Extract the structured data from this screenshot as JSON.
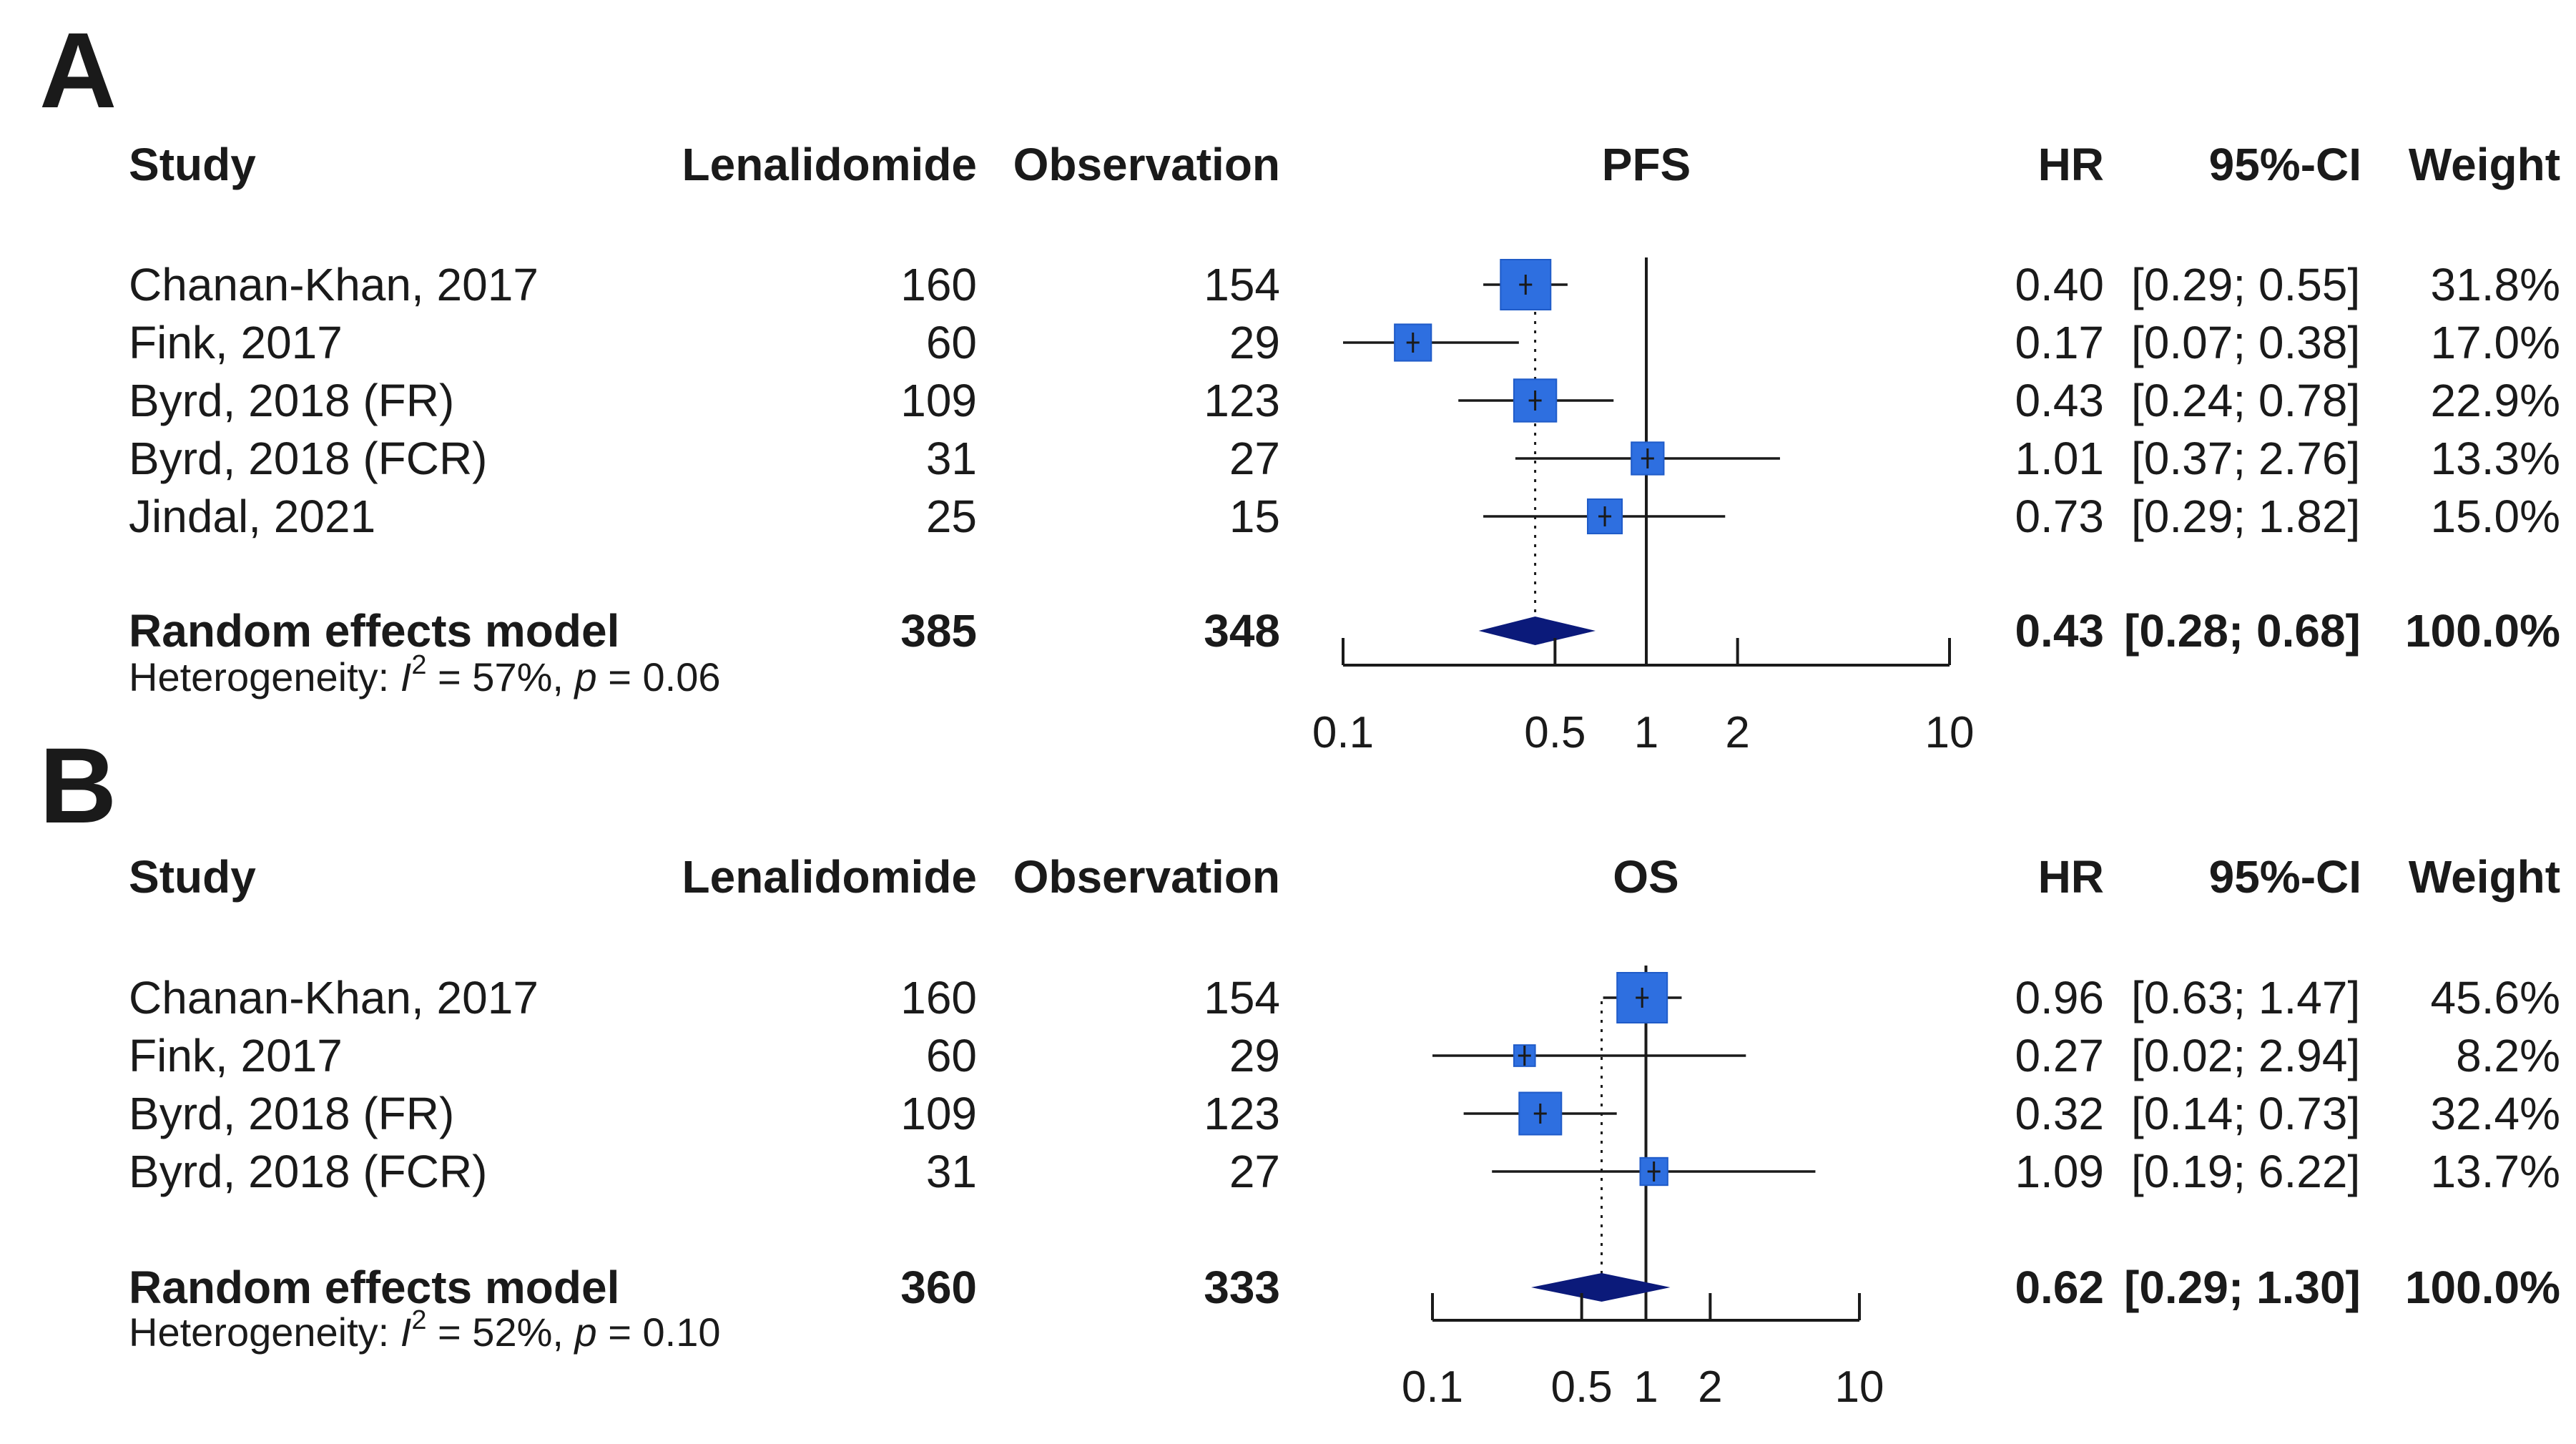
{
  "chart_data": [
    {
      "type": "forest",
      "panel": "A",
      "columns": {
        "study": "Study",
        "treatment": "Lenalidomide",
        "control": "Observation",
        "plot": "PFS",
        "estimate": "HR",
        "ci": "95%-CI",
        "weight": "Weight"
      },
      "studies": [
        {
          "name": "Chanan-Khan, 2017",
          "treatment": "160",
          "control": "154",
          "hr": 0.4,
          "lo": 0.29,
          "hi": 0.55,
          "hr_text": "0.40",
          "ci_text": "[0.29; 0.55]",
          "weight_text": "31.8%",
          "weight": 31.8
        },
        {
          "name": "Fink, 2017",
          "treatment": "60",
          "control": "29",
          "hr": 0.17,
          "lo": 0.07,
          "hi": 0.38,
          "hr_text": "0.17",
          "ci_text": "[0.07; 0.38]",
          "weight_text": "17.0%",
          "weight": 17.0
        },
        {
          "name": "Byrd, 2018 (FR)",
          "treatment": "109",
          "control": "123",
          "hr": 0.43,
          "lo": 0.24,
          "hi": 0.78,
          "hr_text": "0.43",
          "ci_text": "[0.24; 0.78]",
          "weight_text": "22.9%",
          "weight": 22.9
        },
        {
          "name": "Byrd, 2018 (FCR)",
          "treatment": "31",
          "control": "27",
          "hr": 1.01,
          "lo": 0.37,
          "hi": 2.76,
          "hr_text": "1.01",
          "ci_text": "[0.37; 2.76]",
          "weight_text": "13.3%",
          "weight": 13.3
        },
        {
          "name": "Jindal, 2021",
          "treatment": "25",
          "control": "15",
          "hr": 0.73,
          "lo": 0.29,
          "hi": 1.82,
          "hr_text": "0.73",
          "ci_text": "[0.29; 1.82]",
          "weight_text": "15.0%",
          "weight": 15.0
        }
      ],
      "pooled": {
        "name": "Random effects model",
        "treatment": "385",
        "control": "348",
        "hr": 0.43,
        "lo": 0.28,
        "hi": 0.68,
        "hr_text": "0.43",
        "ci_text": "[0.28; 0.68]",
        "weight_text": "100.0%"
      },
      "heterogeneity": {
        "prefix": "Heterogeneity: ",
        "i2_symbol": "I",
        "i2_sup": "2",
        "i2_value": " = 57%, ",
        "p_symbol": "p",
        "p_value": " = 0.06"
      },
      "axis": {
        "scale": "log",
        "xlim": [
          0.1,
          10
        ],
        "ticks": [
          0.1,
          0.5,
          1,
          2,
          10
        ],
        "tick_labels": [
          "0.1",
          "0.5",
          "1",
          "2",
          "10"
        ],
        "reference": 1
      }
    },
    {
      "type": "forest",
      "panel": "B",
      "columns": {
        "study": "Study",
        "treatment": "Lenalidomide",
        "control": "Observation",
        "plot": "OS",
        "estimate": "HR",
        "ci": "95%-CI",
        "weight": "Weight"
      },
      "studies": [
        {
          "name": "Chanan-Khan, 2017",
          "treatment": "160",
          "control": "154",
          "hr": 0.96,
          "lo": 0.63,
          "hi": 1.47,
          "hr_text": "0.96",
          "ci_text": "[0.63; 1.47]",
          "weight_text": "45.6%",
          "weight": 45.6
        },
        {
          "name": "Fink, 2017",
          "treatment": "60",
          "control": "29",
          "hr": 0.27,
          "lo": 0.02,
          "hi": 2.94,
          "hr_text": "0.27",
          "ci_text": "[0.02; 2.94]",
          "weight_text": "8.2%",
          "weight": 8.2
        },
        {
          "name": "Byrd, 2018 (FR)",
          "treatment": "109",
          "control": "123",
          "hr": 0.32,
          "lo": 0.14,
          "hi": 0.73,
          "hr_text": "0.32",
          "ci_text": "[0.14; 0.73]",
          "weight_text": "32.4%",
          "weight": 32.4
        },
        {
          "name": "Byrd, 2018 (FCR)",
          "treatment": "31",
          "control": "27",
          "hr": 1.09,
          "lo": 0.19,
          "hi": 6.22,
          "hr_text": "1.09",
          "ci_text": "[0.19; 6.22]",
          "weight_text": "13.7%",
          "weight": 13.7
        }
      ],
      "pooled": {
        "name": "Random effects model",
        "treatment": "360",
        "control": "333",
        "hr": 0.62,
        "lo": 0.29,
        "hi": 1.3,
        "hr_text": "0.62",
        "ci_text": "[0.29; 1.30]",
        "weight_text": "100.0%"
      },
      "heterogeneity": {
        "prefix": "Heterogeneity: ",
        "i2_symbol": "I",
        "i2_sup": "2",
        "i2_value": " = 52%, ",
        "p_symbol": "p",
        "p_value": " = 0.10"
      },
      "axis": {
        "scale": "log",
        "xlim": [
          0.1,
          10
        ],
        "ticks": [
          0.1,
          0.5,
          1,
          2,
          10
        ],
        "tick_labels": [
          "0.1",
          "0.5",
          "1",
          "2",
          "10"
        ],
        "reference": 1
      }
    }
  ],
  "colors": {
    "square": "#2e6fe0",
    "square_edge": "#1f5bc8",
    "diamond": "#0b1a7a",
    "line": "#1a1a1a",
    "text": "#1a1a1a"
  }
}
